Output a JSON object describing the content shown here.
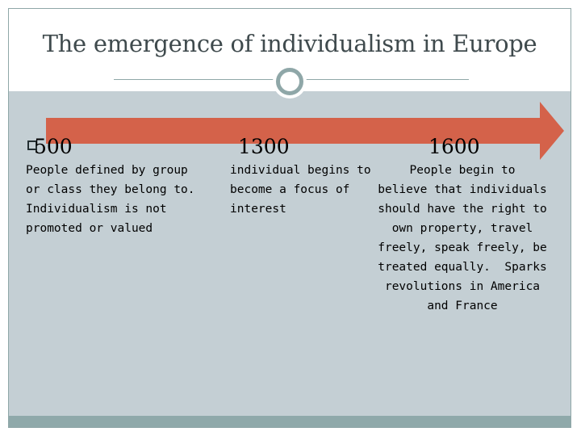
{
  "title": "The emergence of individualism in Europe",
  "colors": {
    "background": "#c4cfd4",
    "accent": "#8fa7a8",
    "arrow": "#d4624a",
    "text": "#000000"
  },
  "icons": {
    "bullet": "square-bullet-icon",
    "header_ornament": "ring-icon"
  },
  "timeline": {
    "bullet_glyph": "",
    "entries": [
      {
        "year": "500",
        "description": "People defined by group\nor class they belong to.\nIndividualism is not\npromoted or valued"
      },
      {
        "year": "1300",
        "description": "individual begins to\nbecome a focus of\ninterest"
      },
      {
        "year": "1600",
        "description": "People begin to\nbelieve that individuals\nshould have the right to\nown property, travel\nfreely, speak freely, be\ntreated equally.  Sparks\nrevolutions in America\nand France"
      }
    ]
  }
}
